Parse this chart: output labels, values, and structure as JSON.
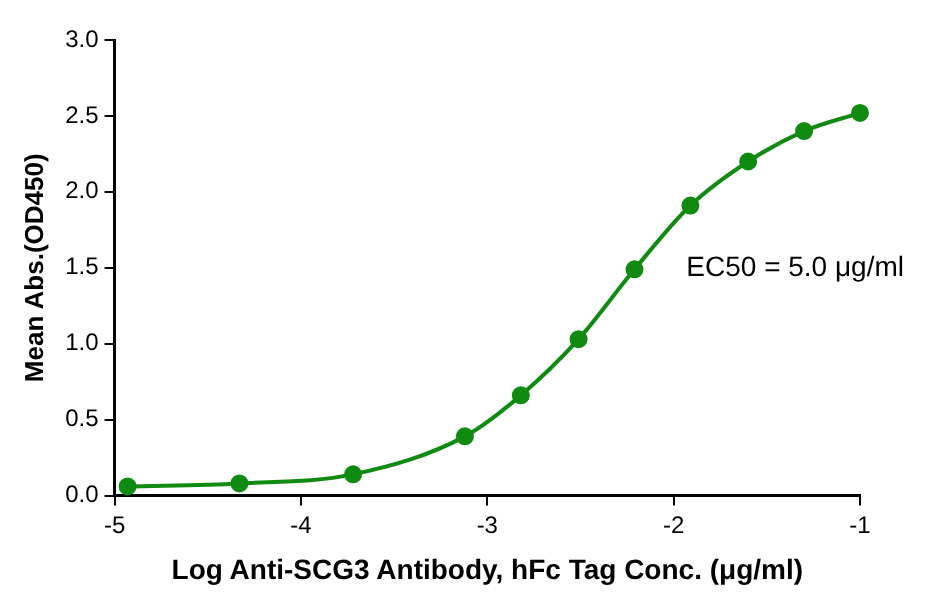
{
  "chart_data": {
    "type": "line",
    "x": [
      -4.93,
      -4.33,
      -3.72,
      -3.12,
      -2.82,
      -2.51,
      -2.21,
      -1.91,
      -1.6,
      -1.3,
      -1.0
    ],
    "series": [
      {
        "color": "#108a10",
        "values": [
          0.06,
          0.08,
          0.14,
          0.39,
          0.66,
          1.03,
          1.49,
          1.91,
          2.2,
          2.4,
          2.52
        ]
      }
    ],
    "xlim": [
      -5,
      -1
    ],
    "xticks": [
      -5,
      -4,
      -3,
      -2,
      -1
    ],
    "ylim": [
      0,
      3
    ],
    "yticks": [
      {
        "value": 0,
        "label": "0.0"
      },
      {
        "value": 0.5,
        "label": "0.5"
      },
      {
        "value": 1,
        "label": "1.0"
      },
      {
        "value": 1.5,
        "label": "1.5"
      },
      {
        "value": 2,
        "label": "2.0"
      },
      {
        "value": 2.5,
        "label": "2.5"
      },
      {
        "value": 3,
        "label": "3.0"
      }
    ],
    "xlabel": "Log Anti-SCG3 Antibody, hFc Tag Conc. (μg/ml)",
    "ylabel": "Mean Abs.(OD450)",
    "annotations": [
      "EC50 = 5.0 μg/ml"
    ],
    "grid": false,
    "legend": false,
    "marker": "circle",
    "line_style": "solid"
  }
}
